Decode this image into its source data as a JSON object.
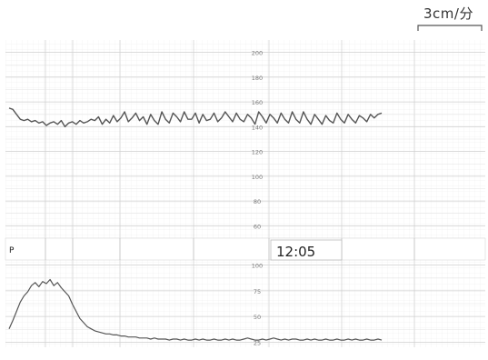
{
  "scale": {
    "speed_label": "3cm/分"
  },
  "chart_data": [
    {
      "type": "line",
      "name": "fetal-heart-rate",
      "xlim": [
        0,
        100
      ],
      "ylim": [
        50,
        210
      ],
      "yticks": [
        60,
        80,
        100,
        120,
        140,
        160,
        180,
        200
      ],
      "series": [
        {
          "x": [
            0,
            1,
            2,
            3,
            4,
            5,
            6,
            7,
            8,
            9,
            10,
            11,
            12,
            13,
            14,
            15,
            16,
            17,
            18,
            19,
            20,
            21,
            22,
            23,
            24,
            25,
            26,
            27,
            28,
            29,
            30,
            31,
            32,
            33,
            34,
            35,
            36,
            37,
            38,
            39,
            40,
            41,
            42,
            43,
            44,
            45,
            46,
            47,
            48,
            49,
            50,
            51,
            52,
            53,
            54,
            55,
            56,
            57,
            58,
            59,
            60,
            61,
            62,
            63,
            64,
            65,
            66,
            67,
            68,
            69,
            70,
            71,
            72,
            73,
            74,
            75,
            76,
            77,
            78,
            79,
            80,
            81,
            82,
            83,
            84,
            85,
            86,
            87,
            88,
            89,
            90,
            91,
            92,
            93,
            94,
            95,
            96,
            97,
            98,
            99,
            100
          ],
          "values": [
            155,
            154,
            150,
            146,
            145,
            146,
            144,
            145,
            143,
            144,
            141,
            143,
            144,
            142,
            145,
            140,
            143,
            144,
            142,
            145,
            143,
            144,
            146,
            145,
            148,
            142,
            146,
            143,
            149,
            144,
            147,
            152,
            144,
            147,
            151,
            145,
            148,
            142,
            150,
            145,
            142,
            152,
            146,
            143,
            151,
            148,
            144,
            152,
            146,
            146,
            151,
            143,
            150,
            145,
            146,
            151,
            144,
            147,
            152,
            148,
            144,
            151,
            146,
            144,
            150,
            147,
            142,
            152,
            148,
            143,
            150,
            147,
            143,
            151,
            146,
            143,
            152,
            146,
            143,
            152,
            146,
            142,
            150,
            146,
            142,
            149,
            145,
            143,
            151,
            146,
            143,
            150,
            146,
            143,
            149,
            147,
            144,
            150,
            147,
            150,
            151
          ]
        }
      ]
    },
    {
      "type": "line",
      "name": "uterine-contraction",
      "xlim": [
        0,
        100
      ],
      "ylim": [
        20,
        105
      ],
      "yticks": [
        25,
        50,
        75,
        100
      ],
      "series": [
        {
          "x": [
            0,
            1,
            2,
            3,
            4,
            5,
            6,
            7,
            8,
            9,
            10,
            11,
            12,
            13,
            14,
            15,
            16,
            17,
            18,
            19,
            20,
            21,
            22,
            23,
            24,
            25,
            26,
            27,
            28,
            29,
            30,
            31,
            32,
            33,
            34,
            35,
            36,
            37,
            38,
            39,
            40,
            41,
            42,
            43,
            44,
            45,
            46,
            47,
            48,
            49,
            50,
            51,
            52,
            53,
            54,
            55,
            56,
            57,
            58,
            59,
            60,
            61,
            62,
            63,
            64,
            65,
            66,
            67,
            68,
            69,
            70,
            71,
            72,
            73,
            74,
            75,
            76,
            77,
            78,
            79,
            80,
            81,
            82,
            83,
            84,
            85,
            86,
            87,
            88,
            89,
            90,
            91,
            92,
            93,
            94,
            95,
            96,
            97,
            98,
            99,
            100
          ],
          "values": [
            38,
            46,
            55,
            64,
            70,
            74,
            80,
            83,
            79,
            84,
            82,
            86,
            80,
            83,
            78,
            74,
            70,
            62,
            55,
            48,
            44,
            40,
            38,
            36,
            35,
            34,
            33,
            33,
            32,
            32,
            31,
            31,
            30,
            30,
            30,
            29,
            29,
            29,
            28,
            29,
            28,
            28,
            28,
            27,
            28,
            28,
            27,
            28,
            27,
            27,
            28,
            27,
            28,
            27,
            27,
            28,
            27,
            27,
            28,
            27,
            28,
            27,
            27,
            28,
            29,
            28,
            27,
            27,
            28,
            27,
            28,
            29,
            28,
            27,
            28,
            27,
            28,
            28,
            27,
            27,
            28,
            27,
            28,
            27,
            27,
            28,
            27,
            27,
            28,
            27,
            27,
            28,
            27,
            28,
            27,
            27,
            28,
            27,
            27,
            28,
            27
          ]
        }
      ]
    }
  ],
  "timeline": {
    "time_label": "12:05",
    "marker_symbol": "P"
  }
}
